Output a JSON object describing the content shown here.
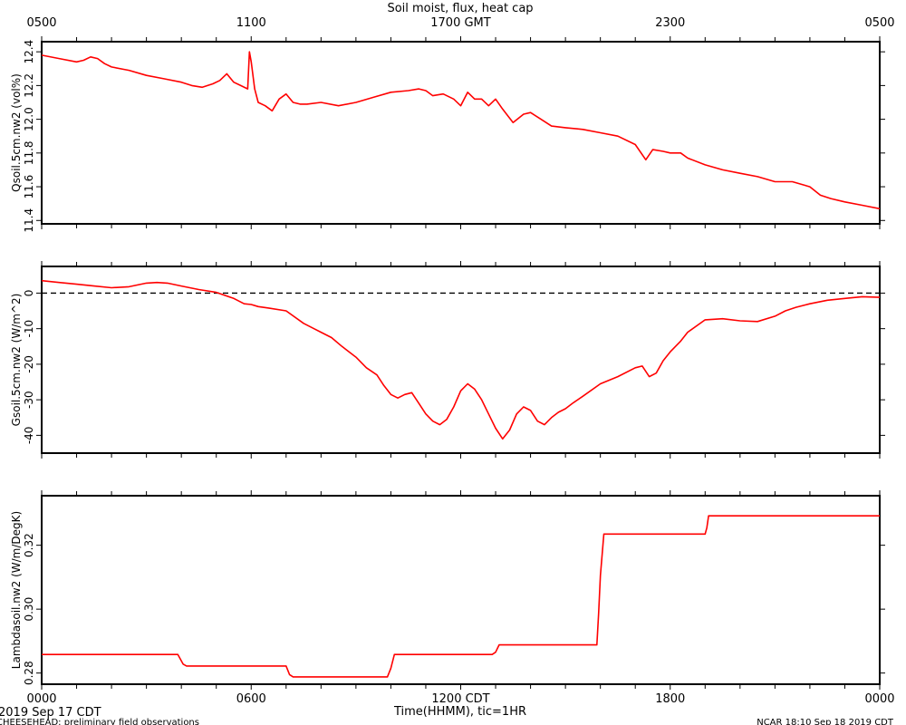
{
  "header": {
    "title": "Soil moist, flux, heat cap",
    "gmt_ticks": [
      "0500",
      "1100",
      "1700 GMT",
      "2300",
      "0500"
    ]
  },
  "footer": {
    "date_label": "2019 Sep 17 CDT",
    "project_label": "CHEESEHEAD: preliminary field observations",
    "credit_label": "NCAR 18:10 Sep 18 2019 CDT",
    "xlabel": "Time(HHMM), tic=1HR",
    "x_ticks": [
      "0000",
      "0600",
      "1200 CDT",
      "1800",
      "0000"
    ]
  },
  "colors": {
    "series": "#ff0000",
    "axis": "#000000",
    "zero_line": "#000000"
  },
  "chart_data": [
    {
      "type": "line",
      "name": "soil-moisture",
      "ylabel": "Qsoil.5cm.nw2 (vol%)",
      "ylim": [
        11.38,
        12.46
      ],
      "yticks": [
        11.4,
        11.6,
        11.8,
        12.0,
        12.2,
        12.4
      ],
      "ytick_labels": [
        "11.4",
        "11.6",
        "11.8",
        "12.0",
        "12.2",
        "12.4"
      ],
      "xlim": [
        0,
        24
      ],
      "x": [
        0,
        0.5,
        1,
        1.2,
        1.4,
        1.6,
        1.8,
        2,
        2.5,
        3,
        3.5,
        4,
        4.3,
        4.6,
        4.9,
        5.1,
        5.3,
        5.5,
        5.7,
        5.9,
        5.95,
        6.0,
        6.1,
        6.2,
        6.4,
        6.6,
        6.8,
        7.0,
        7.2,
        7.4,
        7.6,
        8.0,
        8.5,
        9.0,
        9.5,
        10.0,
        10.5,
        10.8,
        11.0,
        11.2,
        11.5,
        11.8,
        12.0,
        12.2,
        12.4,
        12.6,
        12.8,
        13.0,
        13.2,
        13.5,
        13.8,
        14.0,
        14.3,
        14.6,
        15.0,
        15.5,
        16.0,
        16.5,
        17.0,
        17.3,
        17.5,
        17.8,
        18.0,
        18.3,
        18.5,
        19.0,
        19.5,
        20.0,
        20.5,
        21.0,
        21.5,
        22.0,
        22.3,
        22.6,
        23.0,
        23.5,
        24.0
      ],
      "y": [
        12.38,
        12.36,
        12.34,
        12.35,
        12.37,
        12.36,
        12.33,
        12.31,
        12.29,
        12.26,
        12.24,
        12.22,
        12.2,
        12.19,
        12.21,
        12.23,
        12.27,
        12.22,
        12.2,
        12.18,
        12.4,
        12.34,
        12.18,
        12.1,
        12.08,
        12.05,
        12.12,
        12.15,
        12.1,
        12.09,
        12.09,
        12.1,
        12.08,
        12.1,
        12.13,
        12.16,
        12.17,
        12.18,
        12.17,
        12.14,
        12.15,
        12.12,
        12.08,
        12.16,
        12.12,
        12.12,
        12.08,
        12.12,
        12.06,
        11.98,
        12.03,
        12.04,
        12.0,
        11.96,
        11.95,
        11.94,
        11.92,
        11.9,
        11.85,
        11.76,
        11.82,
        11.81,
        11.8,
        11.8,
        11.77,
        11.73,
        11.7,
        11.68,
        11.66,
        11.63,
        11.63,
        11.6,
        11.55,
        11.53,
        11.51,
        11.49,
        11.47
      ]
    },
    {
      "type": "line",
      "name": "soil-heat-flux",
      "ylabel": "Gsoil.5cm.nw2 (W/m^2)",
      "ylim": [
        -45,
        7.5
      ],
      "yticks": [
        -40,
        -30,
        -20,
        -10,
        0
      ],
      "ytick_labels": [
        "-40",
        "-30",
        "-20",
        "-10",
        "0"
      ],
      "zero_line": 0,
      "xlim": [
        0,
        24
      ],
      "x": [
        0,
        0.5,
        1,
        1.5,
        2,
        2.5,
        3,
        3.3,
        3.6,
        4,
        4.5,
        5,
        5.5,
        5.8,
        6.0,
        6.2,
        6.5,
        7.0,
        7.5,
        7.8,
        8.0,
        8.3,
        8.6,
        9.0,
        9.3,
        9.6,
        9.8,
        10.0,
        10.2,
        10.4,
        10.6,
        10.8,
        11.0,
        11.2,
        11.4,
        11.6,
        11.8,
        12.0,
        12.2,
        12.4,
        12.6,
        12.8,
        13.0,
        13.2,
        13.4,
        13.6,
        13.8,
        14.0,
        14.2,
        14.4,
        14.6,
        14.8,
        15.0,
        15.2,
        15.5,
        16.0,
        16.5,
        17.0,
        17.2,
        17.4,
        17.6,
        17.8,
        18.0,
        18.3,
        18.5,
        19.0,
        19.5,
        20.0,
        20.5,
        21.0,
        21.3,
        21.6,
        22.0,
        22.5,
        23.0,
        23.5,
        24.0
      ],
      "y": [
        3.5,
        3.0,
        2.5,
        2.0,
        1.5,
        1.8,
        2.8,
        3.0,
        2.8,
        2.0,
        1.0,
        0.2,
        -1.5,
        -3.0,
        -3.2,
        -3.8,
        -4.2,
        -5.0,
        -8.5,
        -10.0,
        -11.0,
        -12.5,
        -15.0,
        -18.0,
        -21.0,
        -23.0,
        -26.0,
        -28.5,
        -29.5,
        -28.5,
        -28.0,
        -31.0,
        -34.0,
        -36.0,
        -37.0,
        -35.5,
        -32.0,
        -27.5,
        -25.5,
        -27.0,
        -30.0,
        -34.0,
        -38.0,
        -41.0,
        -38.5,
        -34.0,
        -32.0,
        -33.0,
        -36.0,
        -37.0,
        -35.0,
        -33.5,
        -32.5,
        -31.0,
        -29.0,
        -25.5,
        -23.5,
        -21.0,
        -20.5,
        -23.5,
        -22.5,
        -19.0,
        -16.5,
        -13.5,
        -11.0,
        -7.5,
        -7.2,
        -7.8,
        -8.0,
        -6.5,
        -5.0,
        -4.0,
        -3.0,
        -2.0,
        -1.5,
        -1.0,
        -1.2
      ]
    },
    {
      "type": "line",
      "name": "thermal-conductivity",
      "ylabel": "Lambdasoil.nw2 (W/m/DegK)",
      "ylim": [
        0.2765,
        0.3355
      ],
      "yticks": [
        0.28,
        0.3,
        0.32
      ],
      "ytick_labels": [
        "0.28",
        "0.30",
        "0.32"
      ],
      "xlim": [
        0,
        24
      ],
      "x": [
        0,
        3.9,
        4.05,
        4.15,
        7.0,
        7.1,
        7.2,
        9.9,
        10.0,
        10.1,
        12.9,
        13.0,
        13.1,
        15.9,
        15.95,
        16.0,
        16.1,
        19.0,
        19.05,
        19.1,
        24.0
      ],
      "y": [
        0.2858,
        0.2858,
        0.2828,
        0.2822,
        0.2822,
        0.2795,
        0.2788,
        0.2788,
        0.2815,
        0.2858,
        0.2858,
        0.2865,
        0.2888,
        0.2888,
        0.2985,
        0.3105,
        0.3235,
        0.3235,
        0.3255,
        0.3292,
        0.3292
      ]
    }
  ]
}
